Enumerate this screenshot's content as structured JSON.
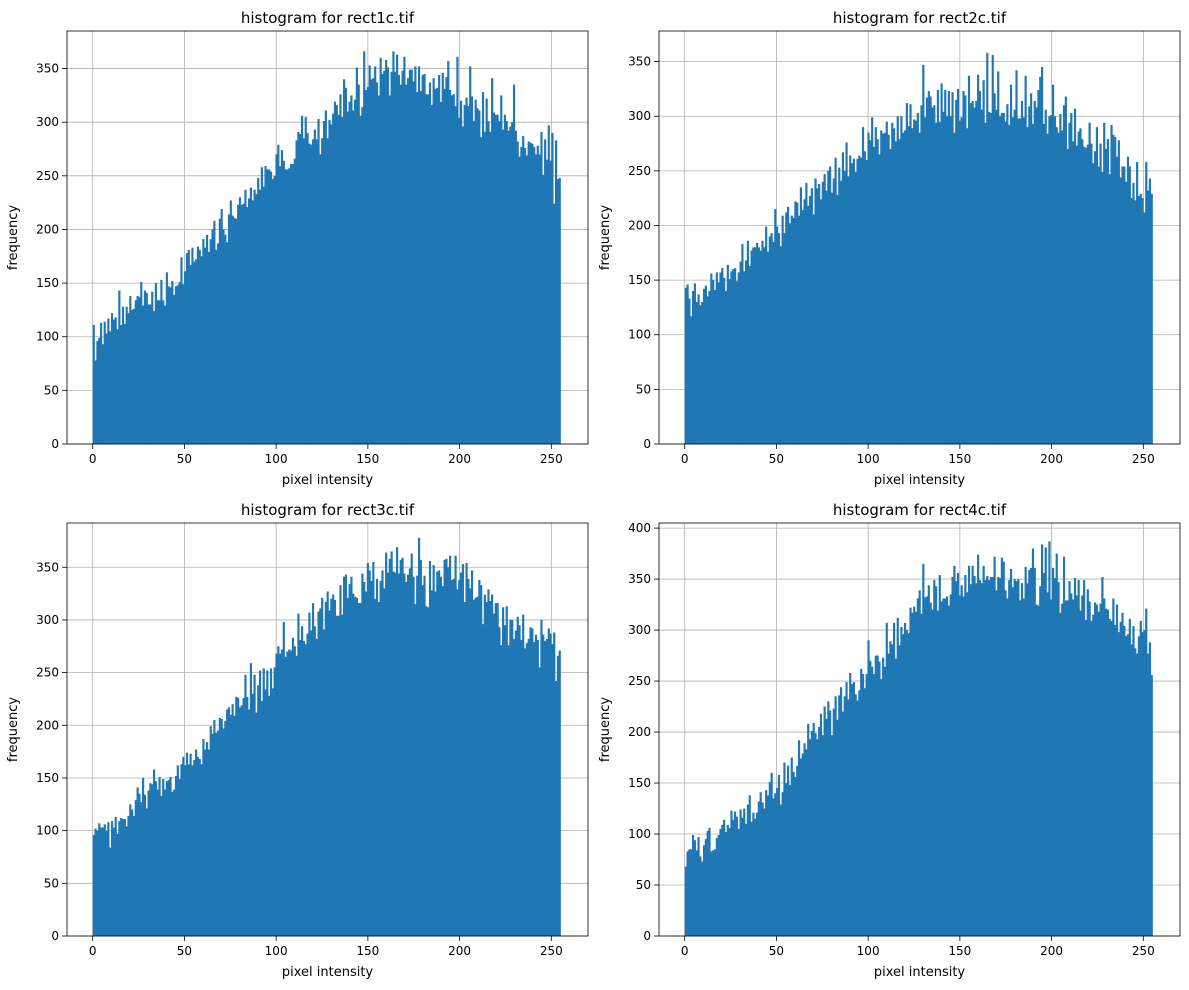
{
  "figure": {
    "bar_color": "#1f77b4",
    "grid_color": "#b0b0b0"
  },
  "chart_data": [
    {
      "type": "bar",
      "title": "histogram for rect1c.tif",
      "xlabel": "pixel intensity",
      "ylabel": "frequency",
      "xlim": [
        -14,
        270
      ],
      "ylim": [
        0,
        385
      ],
      "x_ticks": [
        0,
        50,
        100,
        150,
        200,
        250
      ],
      "y_ticks": [
        0,
        50,
        100,
        150,
        200,
        250,
        300,
        350
      ],
      "grid": true,
      "bins": 256,
      "values": [
        111,
        78,
        96,
        99,
        113,
        93,
        114,
        103,
        117,
        105,
        122,
        116,
        118,
        107,
        143,
        111,
        128,
        112,
        128,
        122,
        138,
        125,
        126,
        134,
        138,
        137,
        151,
        129,
        143,
        141,
        130,
        130,
        142,
        124,
        150,
        134,
        134,
        153,
        134,
        129,
        160,
        147,
        146,
        152,
        139,
        147,
        148,
        151,
        174,
        149,
        161,
        178,
        181,
        167,
        183,
        170,
        172,
        184,
        181,
        175,
        191,
        183,
        195,
        179,
        191,
        200,
        208,
        181,
        187,
        210,
        219,
        200,
        195,
        188,
        214,
        227,
        213,
        211,
        210,
        223,
        230,
        223,
        224,
        237,
        221,
        229,
        239,
        227,
        237,
        233,
        248,
        237,
        258,
        240,
        259,
        256,
        256,
        254,
        247,
        250,
        270,
        279,
        259,
        274,
        264,
        256,
        256,
        257,
        261,
        261,
        266,
        283,
        291,
        289,
        306,
        285,
        305,
        290,
        280,
        279,
        284,
        293,
        284,
        303,
        270,
        285,
        301,
        311,
        285,
        302,
        298,
        308,
        319,
        316,
        307,
        326,
        305,
        340,
        332,
        310,
        319,
        325,
        311,
        321,
        351,
        335,
        306,
        314,
        366,
        330,
        333,
        353,
        340,
        341,
        352,
        337,
        325,
        360,
        345,
        348,
        358,
        351,
        325,
        347,
        366,
        347,
        363,
        344,
        335,
        348,
        361,
        335,
        341,
        349,
        349,
        338,
        352,
        328,
        352,
        329,
        344,
        345,
        326,
        326,
        337,
        316,
        341,
        331,
        332,
        344,
        319,
        346,
        331,
        342,
        357,
        330,
        325,
        326,
        315,
        361,
        304,
        320,
        296,
        316,
        323,
        315,
        352,
        324,
        301,
        321,
        313,
        311,
        286,
        328,
        291,
        322,
        301,
        291,
        341,
        309,
        307,
        307,
        301,
        325,
        293,
        307,
        301,
        292,
        296,
        300,
        335,
        292,
        282,
        268,
        277,
        287,
        276,
        269,
        282,
        281,
        280,
        277,
        270,
        278,
        270,
        291,
        251,
        284,
        265,
        297,
        264,
        290,
        224,
        283,
        247,
        248
      ]
    },
    {
      "type": "bar",
      "title": "histogram for rect2c.tif",
      "xlabel": "pixel intensity",
      "ylabel": "frequency",
      "xlim": [
        -14,
        270
      ],
      "ylim": [
        0,
        378
      ],
      "x_ticks": [
        0,
        50,
        100,
        150,
        200,
        250
      ],
      "y_ticks": [
        0,
        50,
        100,
        150,
        200,
        250,
        300,
        350
      ],
      "grid": true,
      "bins": 256,
      "values": [
        143,
        146,
        133,
        117,
        140,
        147,
        130,
        137,
        127,
        130,
        142,
        145,
        135,
        140,
        156,
        150,
        141,
        157,
        148,
        157,
        161,
        152,
        140,
        164,
        151,
        158,
        160,
        161,
        149,
        157,
        167,
        183,
        158,
        168,
        186,
        163,
        177,
        180,
        180,
        184,
        180,
        177,
        186,
        180,
        199,
        176,
        190,
        193,
        185,
        215,
        199,
        193,
        181,
        209,
        193,
        212,
        217,
        202,
        209,
        207,
        222,
        221,
        209,
        235,
        214,
        224,
        239,
        218,
        227,
        234,
        210,
        243,
        234,
        238,
        224,
        240,
        247,
        232,
        250,
        254,
        230,
        243,
        262,
        228,
        253,
        241,
        267,
        250,
        276,
        245,
        264,
        257,
        261,
        249,
        261,
        264,
        262,
        290,
        268,
        260,
        285,
        278,
        299,
        272,
        290,
        279,
        265,
        287,
        284,
        285,
        295,
        283,
        270,
        294,
        289,
        277,
        300,
        279,
        300,
        285,
        287,
        312,
        291,
        311,
        289,
        297,
        296,
        303,
        285,
        310,
        347,
        299,
        317,
        323,
        318,
        308,
        310,
        294,
        324,
        295,
        330,
        304,
        324,
        300,
        323,
        300,
        322,
        285,
        315,
        325,
        296,
        299,
        323,
        319,
        289,
        337,
        312,
        314,
        308,
        314,
        338,
        323,
        306,
        333,
        294,
        358,
        304,
        303,
        356,
        321,
        306,
        341,
        300,
        303,
        303,
        295,
        311,
        292,
        329,
        299,
        306,
        342,
        298,
        298,
        314,
        299,
        337,
        290,
        309,
        321,
        293,
        314,
        308,
        324,
        336,
        345,
        293,
        306,
        284,
        300,
        301,
        329,
        300,
        290,
        285,
        302,
        287,
        310,
        318,
        270,
        294,
        303,
        277,
        307,
        273,
        286,
        289,
        279,
        272,
        271,
        274,
        294,
        275,
        257,
        268,
        290,
        254,
        275,
        249,
        294,
        270,
        279,
        247,
        292,
        283,
        281,
        263,
        278,
        244,
        254,
        254,
        240,
        263,
        254,
        225,
        239,
        223,
        258,
        227,
        229,
        225,
        212,
        258,
        232,
        243,
        229
      ]
    },
    {
      "type": "bar",
      "title": "histogram for rect3c.tif",
      "xlabel": "pixel intensity",
      "ylabel": "frequency",
      "xlim": [
        -14,
        270
      ],
      "ylim": [
        0,
        392
      ],
      "x_ticks": [
        0,
        50,
        100,
        150,
        200,
        250
      ],
      "y_ticks": [
        0,
        50,
        100,
        150,
        200,
        250,
        300,
        350
      ],
      "grid": true,
      "bins": 256,
      "values": [
        96,
        102,
        100,
        107,
        103,
        103,
        106,
        100,
        108,
        84,
        109,
        103,
        113,
        97,
        109,
        112,
        111,
        111,
        104,
        114,
        125,
        120,
        114,
        129,
        141,
        135,
        127,
        150,
        134,
        121,
        138,
        145,
        144,
        158,
        147,
        139,
        151,
        133,
        149,
        139,
        147,
        148,
        151,
        137,
        139,
        152,
        162,
        149,
        163,
        170,
        162,
        174,
        163,
        173,
        162,
        167,
        177,
        170,
        168,
        163,
        187,
        177,
        184,
        177,
        199,
        192,
        205,
        193,
        195,
        207,
        206,
        197,
        204,
        215,
        217,
        210,
        220,
        209,
        227,
        226,
        217,
        219,
        226,
        248,
        227,
        215,
        259,
        230,
        248,
        212,
        238,
        252,
        223,
        254,
        234,
        252,
        228,
        254,
        235,
        255,
        268,
        275,
        268,
        272,
        298,
        265,
        270,
        272,
        271,
        283,
        275,
        266,
        306,
        281,
        294,
        280,
        277,
        287,
        307,
        290,
        316,
        294,
        282,
        308,
        311,
        321,
        291,
        317,
        327,
        309,
        320,
        324,
        319,
        304,
        304,
        333,
        305,
        341,
        343,
        321,
        334,
        341,
        325,
        322,
        321,
        316,
        316,
        344,
        336,
        327,
        354,
        347,
        337,
        355,
        320,
        339,
        317,
        337,
        347,
        330,
        364,
        345,
        358,
        365,
        346,
        345,
        369,
        344,
        357,
        359,
        344,
        336,
        343,
        349,
        363,
        341,
        315,
        342,
        378,
        357,
        333,
        342,
        313,
        312,
        356,
        328,
        352,
        327,
        346,
        347,
        341,
        332,
        357,
        358,
        350,
        361,
        338,
        339,
        361,
        329,
        338,
        345,
        353,
        317,
        354,
        339,
        330,
        347,
        319,
        321,
        322,
        338,
        333,
        296,
        324,
        317,
        329,
        318,
        324,
        306,
        316,
        316,
        293,
        276,
        312,
        295,
        313,
        276,
        300,
        300,
        282,
        290,
        303,
        295,
        281,
        305,
        273,
        278,
        282,
        293,
        292,
        279,
        286,
        281,
        255,
        300,
        286,
        280,
        282,
        292,
        287,
        277,
        288,
        242,
        266,
        271
      ]
    },
    {
      "type": "bar",
      "title": "histogram for rect4c.tif",
      "xlabel": "pixel intensity",
      "ylabel": "frequency",
      "xlim": [
        -14,
        270
      ],
      "ylim": [
        0,
        405
      ],
      "x_ticks": [
        0,
        50,
        100,
        150,
        200,
        250
      ],
      "y_ticks": [
        0,
        50,
        100,
        150,
        200,
        250,
        300,
        350,
        400
      ],
      "grid": true,
      "bins": 256,
      "values": [
        68,
        83,
        85,
        85,
        99,
        94,
        84,
        97,
        78,
        73,
        89,
        95,
        103,
        106,
        83,
        84,
        85,
        96,
        99,
        105,
        109,
        114,
        102,
        109,
        106,
        123,
        114,
        122,
        117,
        105,
        124,
        116,
        125,
        110,
        129,
        138,
        112,
        121,
        115,
        121,
        132,
        141,
        131,
        125,
        143,
        138,
        151,
        160,
        135,
        140,
        145,
        158,
        129,
        141,
        170,
        150,
        167,
        148,
        175,
        161,
        156,
        167,
        192,
        174,
        179,
        189,
        183,
        208,
        193,
        201,
        209,
        199,
        193,
        205,
        218,
        197,
        225,
        213,
        230,
        221,
        197,
        223,
        235,
        212,
        236,
        244,
        220,
        235,
        249,
        232,
        258,
        247,
        249,
        237,
        231,
        241,
        262,
        257,
        243,
        257,
        290,
        270,
        264,
        257,
        275,
        275,
        269,
        252,
        273,
        264,
        307,
        277,
        289,
        286,
        307,
        272,
        312,
        285,
        303,
        296,
        307,
        300,
        297,
        322,
        317,
        323,
        318,
        331,
        339,
        316,
        365,
        332,
        333,
        344,
        327,
        320,
        349,
        343,
        319,
        354,
        328,
        331,
        331,
        333,
        324,
        335,
        352,
        363,
        348,
        356,
        334,
        344,
        333,
        354,
        337,
        363,
        345,
        363,
        353,
        346,
        374,
        349,
        346,
        363,
        349,
        353,
        349,
        352,
        352,
        372,
        339,
        352,
        351,
        371,
        367,
        339,
        331,
        349,
        360,
        342,
        350,
        348,
        350,
        329,
        346,
        331,
        362,
        346,
        359,
        361,
        380,
        361,
        325,
        324,
        343,
        384,
        356,
        381,
        337,
        387,
        330,
        361,
        351,
        375,
        347,
        317,
        326,
        372,
        329,
        329,
        348,
        336,
        330,
        351,
        334,
        349,
        319,
        334,
        349,
        310,
        340,
        328,
        309,
        315,
        327,
        325,
        318,
        326,
        352,
        331,
        321,
        320,
        311,
        309,
        331,
        305,
        325,
        298,
        308,
        317,
        304,
        294,
        296,
        311,
        286,
        304,
        282,
        277,
        294,
        309,
        298,
        300,
        321,
        277,
        288,
        256
      ]
    }
  ]
}
